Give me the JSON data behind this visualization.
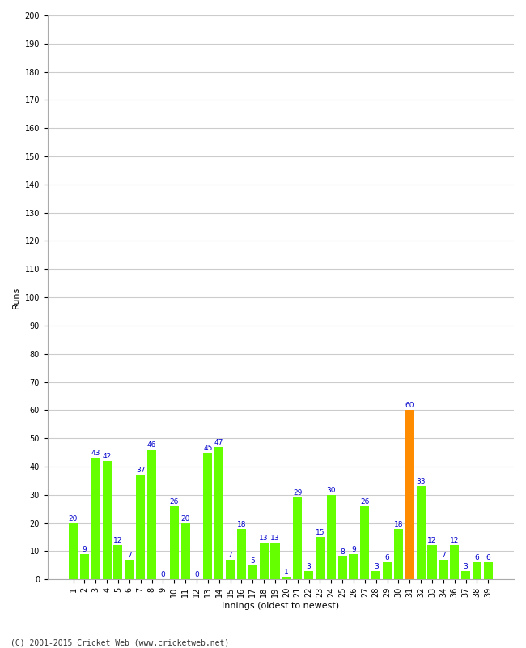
{
  "innings": [
    1,
    2,
    3,
    4,
    5,
    6,
    7,
    8,
    9,
    10,
    11,
    12,
    13,
    14,
    15,
    16,
    17,
    18,
    19,
    20,
    21,
    22,
    23,
    24,
    25,
    26,
    27,
    28,
    29,
    30,
    31,
    32,
    33,
    34,
    36,
    37,
    38,
    39
  ],
  "values": [
    20,
    9,
    43,
    42,
    12,
    7,
    37,
    46,
    0,
    26,
    20,
    0,
    45,
    47,
    7,
    18,
    5,
    13,
    13,
    1,
    29,
    3,
    15,
    30,
    8,
    9,
    26,
    3,
    6,
    18,
    60,
    33,
    12,
    7,
    12,
    3,
    6,
    6
  ],
  "highlight_index": 30,
  "bar_color_normal": "#66ff00",
  "bar_color_highlight": "#ff8c00",
  "xlabel": "Innings (oldest to newest)",
  "ylabel": "Runs",
  "ylim": [
    0,
    200
  ],
  "yticks": [
    0,
    10,
    20,
    30,
    40,
    50,
    60,
    70,
    80,
    90,
    100,
    110,
    120,
    130,
    140,
    150,
    160,
    170,
    180,
    190,
    200
  ],
  "label_color": "#0000cc",
  "label_fontsize": 6.5,
  "axis_label_fontsize": 8,
  "tick_fontsize": 7,
  "grid_color": "#cccccc",
  "background_color": "#ffffff",
  "footer": "(C) 2001-2015 Cricket Web (www.cricketweb.net)"
}
